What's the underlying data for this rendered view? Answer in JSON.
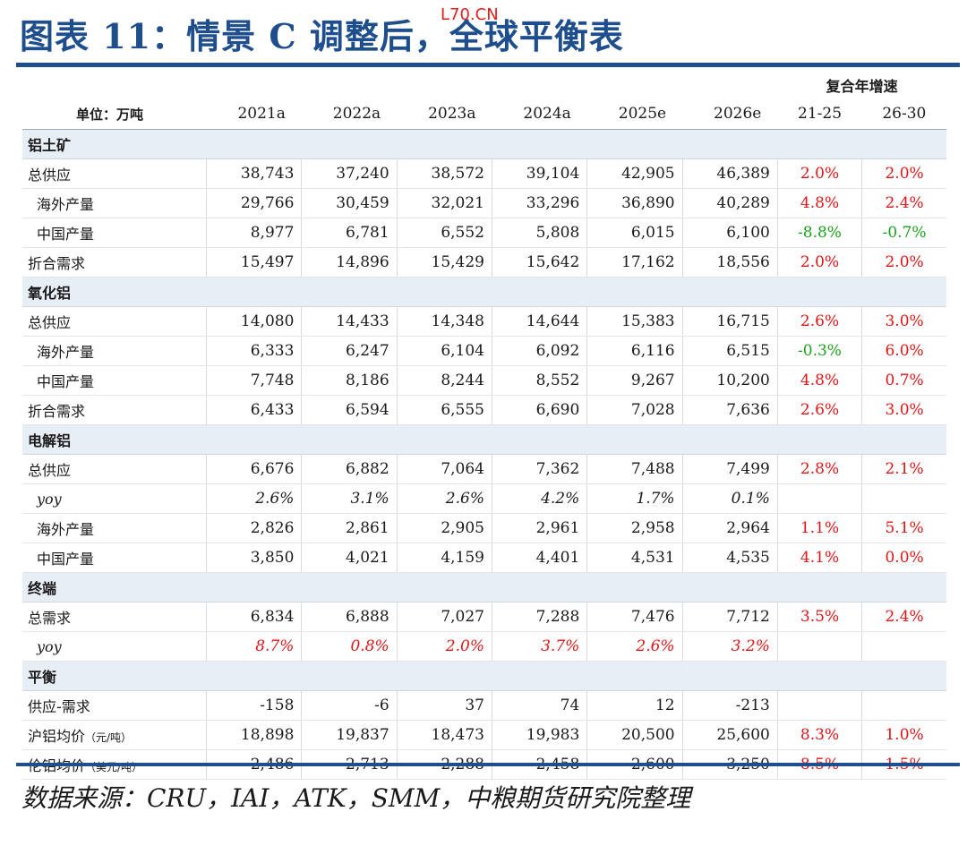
{
  "title": "图表 11：情景 C 调整后，全球平衡表",
  "watermark": "L70.CN",
  "header": {
    "cagr_label": "复合年增速",
    "unit_label": "单位：万吨",
    "years": [
      "2021a",
      "2022a",
      "2023a",
      "2024a",
      "2025e",
      "2026e"
    ],
    "cagr_periods": [
      "21-25",
      "26-30"
    ]
  },
  "sections": [
    {
      "name": "铝土矿",
      "rows": [
        {
          "label": "总供应",
          "indent": false,
          "values": [
            "38,743",
            "37,240",
            "38,572",
            "39,104",
            "42,905",
            "46,389"
          ],
          "g1": "2.0%",
          "g1c": "red",
          "g2": "2.0%",
          "g2c": "red"
        },
        {
          "label": "海外产量",
          "indent": true,
          "values": [
            "29,766",
            "30,459",
            "32,021",
            "33,296",
            "36,890",
            "40,289"
          ],
          "g1": "4.8%",
          "g1c": "red",
          "g2": "2.4%",
          "g2c": "red"
        },
        {
          "label": "中国产量",
          "indent": true,
          "values": [
            "8,977",
            "6,781",
            "6,552",
            "5,808",
            "6,015",
            "6,100"
          ],
          "g1": "-8.8%",
          "g1c": "green",
          "g2": "-0.7%",
          "g2c": "green"
        },
        {
          "label": "折合需求",
          "indent": false,
          "values": [
            "15,497",
            "14,896",
            "15,429",
            "15,642",
            "17,162",
            "18,556"
          ],
          "g1": "2.0%",
          "g1c": "red",
          "g2": "2.0%",
          "g2c": "red"
        }
      ]
    },
    {
      "name": "氧化铝",
      "rows": [
        {
          "label": "总供应",
          "indent": false,
          "values": [
            "14,080",
            "14,433",
            "14,348",
            "14,644",
            "15,383",
            "16,715"
          ],
          "g1": "2.6%",
          "g1c": "red",
          "g2": "3.0%",
          "g2c": "red"
        },
        {
          "label": "海外产量",
          "indent": true,
          "values": [
            "6,333",
            "6,247",
            "6,104",
            "6,092",
            "6,116",
            "6,515"
          ],
          "g1": "-0.3%",
          "g1c": "green",
          "g2": "6.0%",
          "g2c": "red"
        },
        {
          "label": "中国产量",
          "indent": true,
          "values": [
            "7,748",
            "8,186",
            "8,244",
            "8,552",
            "9,267",
            "10,200"
          ],
          "g1": "4.8%",
          "g1c": "red",
          "g2": "0.7%",
          "g2c": "red"
        },
        {
          "label": "折合需求",
          "indent": false,
          "values": [
            "6,433",
            "6,594",
            "6,555",
            "6,690",
            "7,028",
            "7,636"
          ],
          "g1": "2.6%",
          "g1c": "red",
          "g2": "3.0%",
          "g2c": "red"
        }
      ]
    },
    {
      "name": "电解铝",
      "rows": [
        {
          "label": "总供应",
          "indent": false,
          "values": [
            "6,676",
            "6,882",
            "7,064",
            "7,362",
            "7,488",
            "7,499"
          ],
          "g1": "2.8%",
          "g1c": "red",
          "g2": "2.1%",
          "g2c": "red"
        },
        {
          "label": "yoy",
          "italic": true,
          "pctcolor": "",
          "values": [
            "2.6%",
            "3.1%",
            "2.6%",
            "4.2%",
            "1.7%",
            "0.1%"
          ],
          "g1": "",
          "g1c": "",
          "g2": "",
          "g2c": ""
        },
        {
          "label": "海外产量",
          "indent": true,
          "values": [
            "2,826",
            "2,861",
            "2,905",
            "2,961",
            "2,958",
            "2,964"
          ],
          "g1": "1.1%",
          "g1c": "red",
          "g2": "5.1%",
          "g2c": "red"
        },
        {
          "label": "中国产量",
          "indent": true,
          "values": [
            "3,850",
            "4,021",
            "4,159",
            "4,401",
            "4,531",
            "4,535"
          ],
          "g1": "4.1%",
          "g1c": "red",
          "g2": "0.0%",
          "g2c": "red"
        }
      ]
    },
    {
      "name": "终端",
      "rows": [
        {
          "label": "总需求",
          "indent": false,
          "values": [
            "6,834",
            "6,888",
            "7,027",
            "7,288",
            "7,476",
            "7,712"
          ],
          "g1": "3.5%",
          "g1c": "red",
          "g2": "2.4%",
          "g2c": "red"
        },
        {
          "label": "yoy",
          "italic": true,
          "pctcolor": "red",
          "values": [
            "8.7%",
            "0.8%",
            "2.0%",
            "3.7%",
            "2.6%",
            "3.2%"
          ],
          "g1": "",
          "g1c": "",
          "g2": "",
          "g2c": ""
        }
      ]
    },
    {
      "name": "平衡",
      "rows": [
        {
          "label": "供应-需求",
          "indent": false,
          "values": [
            "-158",
            "-6",
            "37",
            "74",
            "12",
            "-213"
          ],
          "g1": "",
          "g1c": "",
          "g2": "",
          "g2c": ""
        },
        {
          "label": "沪铝均价",
          "unit": "（元/吨）",
          "indent": false,
          "values": [
            "18,898",
            "19,837",
            "18,473",
            "19,983",
            "20,500",
            "25,600"
          ],
          "g1": "8.3%",
          "g1c": "red",
          "g2": "1.0%",
          "g2c": "red"
        },
        {
          "label": "伦铝均价",
          "unit": "（美元/吨）",
          "indent": false,
          "values": [
            "2,486",
            "2,713",
            "2,288",
            "2,458",
            "2,600",
            "3,250"
          ],
          "g1": "8.5%",
          "g1c": "red",
          "g2": "1.5%",
          "g2c": "red"
        }
      ]
    }
  ],
  "source": "数据来源：CRU，IAI，ATK，SMM，中粮期货研究院整理"
}
